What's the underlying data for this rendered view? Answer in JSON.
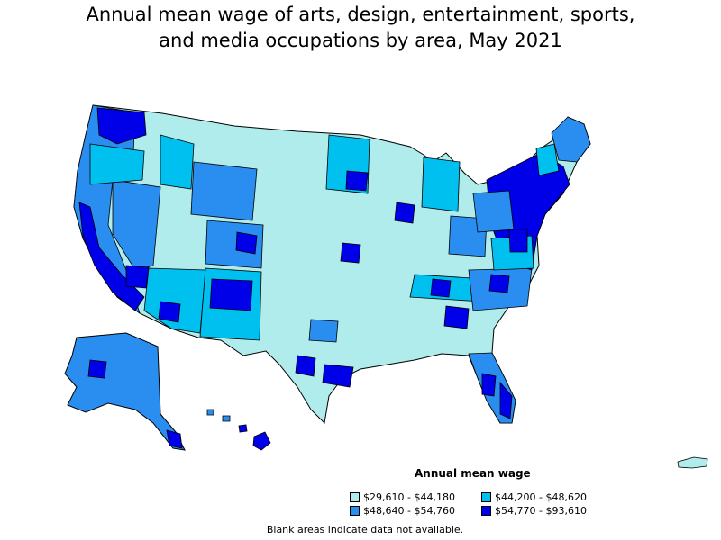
{
  "title_line1": "Annual mean wage of arts, design, entertainment, sports,",
  "title_line2": "and media occupations by area, May 2021",
  "legend": {
    "title": "Annual mean wage",
    "items": [
      {
        "label": "$29,610 - $44,180",
        "color": "#b0ecec"
      },
      {
        "label": "$44,200 - $48,620",
        "color": "#00c0f0"
      },
      {
        "label": "$48,640 - $54,760",
        "color": "#2a8ef0"
      },
      {
        "label": "$54,770 - $93,610",
        "color": "#0000e8"
      }
    ]
  },
  "note": "Blank areas indicate data not available.",
  "colors": {
    "level1": "#b0ecec",
    "level2": "#00c0f0",
    "level3": "#2a8ef0",
    "level4": "#0000e8",
    "border": "#000000"
  }
}
